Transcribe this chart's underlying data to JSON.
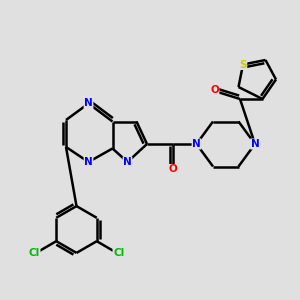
{
  "background_color": "#e0e0e0",
  "atom_colors": {
    "N": "#0000ff",
    "O": "#ff0000",
    "S": "#cccc00",
    "Cl": "#00bb00"
  },
  "bond_color": "#000000",
  "bond_width": 1.8
}
